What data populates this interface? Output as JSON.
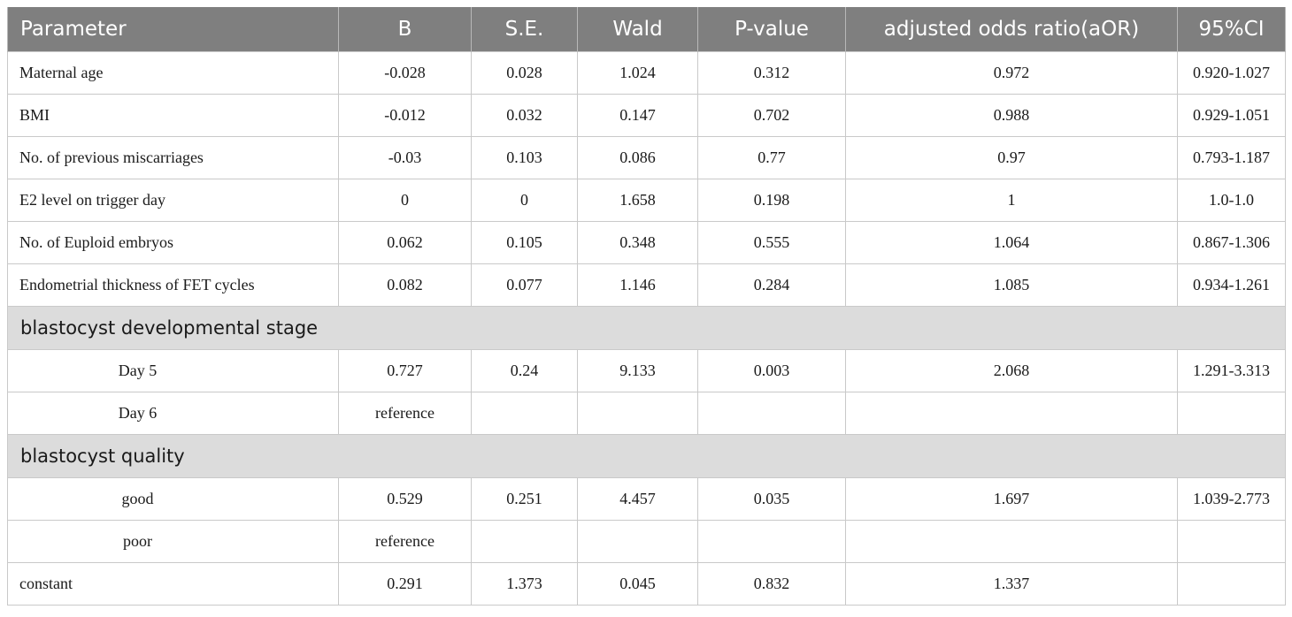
{
  "headers": [
    "Parameter",
    "B",
    "S.E.",
    "Wald",
    "P-value",
    "adjusted odds ratio(aOR)",
    "95%CI"
  ],
  "rows": [
    {
      "label": "Maternal age",
      "b": "-0.028",
      "se": "0.028",
      "wald": "1.024",
      "p": "0.312",
      "aor": "0.972",
      "ci": "0.920-1.027"
    },
    {
      "label": "BMI",
      "b": "-0.012",
      "se": "0.032",
      "wald": "0.147",
      "p": "0.702",
      "aor": "0.988",
      "ci": "0.929-1.051"
    },
    {
      "label": "No. of previous miscarriages",
      "b": "-0.03",
      "se": "0.103",
      "wald": "0.086",
      "p": "0.77",
      "aor": "0.97",
      "ci": "0.793-1.187"
    },
    {
      "label": "E2 level on trigger day",
      "b": "0",
      "se": "0",
      "wald": "1.658",
      "p": "0.198",
      "aor": "1",
      "ci": "1.0-1.0"
    },
    {
      "label": "No. of Euploid embryos",
      "b": "0.062",
      "se": "0.105",
      "wald": "0.348",
      "p": "0.555",
      "aor": "1.064",
      "ci": "0.867-1.306"
    },
    {
      "label": "Endometrial thickness of FET cycles",
      "b": "0.082",
      "se": "0.077",
      "wald": "1.146",
      "p": "0.284",
      "aor": "1.085",
      "ci": "0.934-1.261"
    }
  ],
  "section_stage": {
    "title": "blastocyst developmental stage",
    "rows": [
      {
        "label": "Day 5",
        "b": "0.727",
        "se": "0.24",
        "wald": "9.133",
        "p": "0.003",
        "aor": "2.068",
        "ci": "1.291-3.313"
      },
      {
        "label": "Day 6",
        "b": "reference",
        "se": "",
        "wald": "",
        "p": "",
        "aor": "",
        "ci": ""
      }
    ]
  },
  "section_quality": {
    "title": "blastocyst quality",
    "rows": [
      {
        "label": "good",
        "b": "0.529",
        "se": "0.251",
        "wald": "4.457",
        "p": "0.035",
        "aor": "1.697",
        "ci": "1.039-2.773"
      },
      {
        "label": "poor",
        "b": "reference",
        "se": "",
        "wald": "",
        "p": "",
        "aor": "",
        "ci": ""
      }
    ]
  },
  "constant": {
    "label": "constant",
    "b": "0.291",
    "se": "1.373",
    "wald": "0.045",
    "p": "0.832",
    "aor": "1.337",
    "ci": ""
  }
}
